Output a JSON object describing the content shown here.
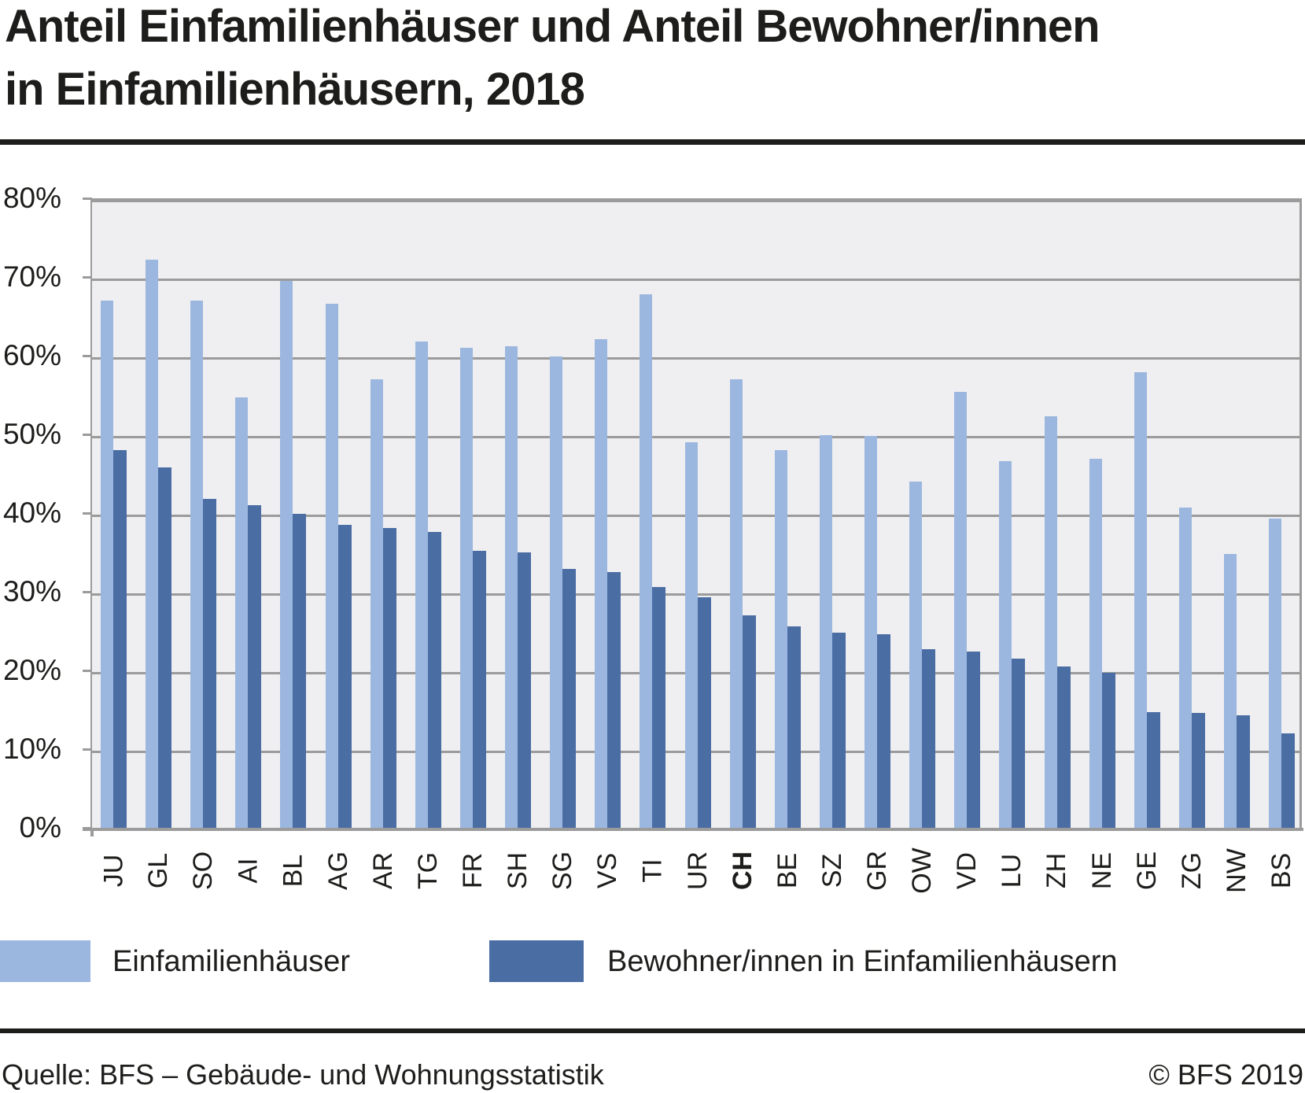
{
  "title": {
    "line1": "Anteil Einfamilienhäuser und Anteil Bewohner/innen",
    "line2": "in Einfamilienhäusern, 2018"
  },
  "legend": {
    "items": [
      {
        "label": "Einfamilienhäuser",
        "color": "#9cb7df"
      },
      {
        "label": "Bewohner/innen in Einfamilienhäusern",
        "color": "#4a6da4"
      }
    ]
  },
  "footer": {
    "source": "Quelle: BFS – Gebäude- und Wohnungsstatistik",
    "copyright": "© BFS 2019"
  },
  "colors": {
    "light_series": "#9cb7df",
    "dark_series": "#4a6da4",
    "plot_background": "#efeff1",
    "gridline": "#9b9b9b",
    "text": "#1d1d1b"
  },
  "chart_data": {
    "type": "bar",
    "title": "Anteil Einfamilienhäuser und Anteil Bewohner/innen in Einfamilienhäusern, 2018",
    "categories": [
      "JU",
      "GL",
      "SO",
      "AI",
      "BL",
      "AG",
      "AR",
      "TG",
      "FR",
      "SH",
      "SG",
      "VS",
      "TI",
      "UR",
      "CH",
      "BE",
      "SZ",
      "GR",
      "OW",
      "VD",
      "LU",
      "ZH",
      "NE",
      "GE",
      "ZG",
      "NW",
      "BS"
    ],
    "bold_category": "CH",
    "series": [
      {
        "name": "Einfamilienhäuser",
        "color": "#9cb7df",
        "values": [
          67.0,
          72.2,
          67.0,
          54.7,
          69.5,
          66.6,
          57.0,
          61.8,
          61.0,
          61.2,
          59.9,
          62.1,
          67.8,
          49.0,
          57.0,
          48.0,
          49.9,
          49.8,
          44.0,
          55.4,
          46.6,
          52.3,
          46.9,
          57.9,
          40.7,
          34.8,
          39.3
        ]
      },
      {
        "name": "Bewohner/innen in Einfamilienhäusern",
        "color": "#4a6da4",
        "values": [
          48.0,
          45.8,
          41.8,
          41.0,
          39.9,
          38.5,
          38.1,
          37.6,
          35.2,
          35.0,
          32.9,
          32.5,
          30.6,
          29.3,
          27.0,
          25.6,
          24.8,
          24.6,
          22.7,
          22.4,
          21.5,
          20.5,
          19.7,
          14.7,
          14.6,
          14.3,
          12.0
        ]
      }
    ],
    "xlabel": "",
    "ylabel": "",
    "yticks": [
      "0%",
      "10%",
      "20%",
      "30%",
      "40%",
      "50%",
      "60%",
      "70%",
      "80%"
    ],
    "ylim": [
      0,
      80
    ],
    "grid": true,
    "legend_position": "bottom"
  }
}
